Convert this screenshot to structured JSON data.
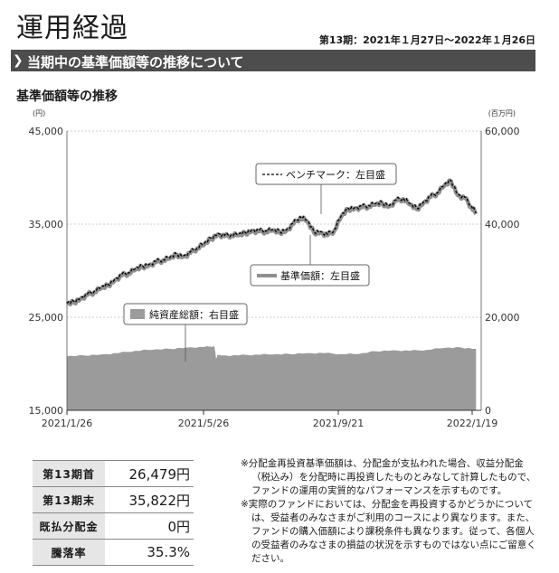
{
  "header": {
    "title": "運用経過",
    "period": "第13期：2021年１月27日～2022年１月26日",
    "section_title": "当期中の基準価額等の推移について",
    "chart_subtitle": "基準価額等の推移"
  },
  "chart_data": {
    "type": "line",
    "left_unit": "(円)",
    "right_unit": "(百万円)",
    "left_axis": {
      "ticks": [
        "45,000",
        "35,000",
        "25,000",
        "15,000"
      ],
      "ylim": [
        15000,
        45000
      ]
    },
    "right_axis": {
      "ticks": [
        "60,000",
        "40,000",
        "20,000",
        "0"
      ],
      "ylim": [
        0,
        60000
      ]
    },
    "x_ticks": [
      "2021/1/26",
      "2021/5/26",
      "2021/9/21",
      "2022/1/19"
    ],
    "legend": {
      "benchmark": "ベンチマーク：左目盛",
      "nav": "基準価額：左目盛",
      "assets": "純資産総額：右目盛"
    },
    "series": [
      {
        "name": "基準価額：左目盛",
        "axis": "left",
        "color": "#8f8f8f",
        "x_months": [
          0,
          0.2,
          0.4,
          0.6,
          0.8,
          1.0,
          1.2,
          1.4,
          1.6,
          1.8,
          2.0,
          2.2,
          2.4,
          2.6,
          2.8,
          3.0,
          3.2,
          3.4,
          3.6,
          3.8,
          4.0,
          4.2,
          4.4,
          4.6,
          4.8,
          5.0,
          5.2,
          5.4,
          5.6,
          5.8,
          6.0,
          6.2,
          6.4,
          6.6,
          6.8,
          7.0,
          7.2,
          7.4,
          7.6,
          7.8,
          8.0,
          8.2,
          8.4,
          8.6,
          8.8,
          9.0,
          9.2,
          9.4,
          9.6,
          9.8,
          10.0,
          10.2,
          10.4,
          10.6,
          10.8,
          11.0,
          11.2,
          11.4,
          11.6,
          11.8,
          11.93
        ],
        "values": [
          26400,
          26600,
          27000,
          27400,
          27700,
          28100,
          28400,
          29000,
          29500,
          29700,
          30100,
          30400,
          30600,
          30900,
          31100,
          31300,
          31700,
          31500,
          31900,
          32400,
          32800,
          33400,
          33900,
          33700,
          33800,
          33800,
          34000,
          34300,
          34200,
          34200,
          34300,
          34100,
          34300,
          35000,
          35700,
          35300,
          34100,
          34100,
          33800,
          34300,
          35800,
          36600,
          36700,
          36800,
          36900,
          37100,
          37200,
          36900,
          37500,
          37700,
          37100,
          36600,
          37300,
          37900,
          38300,
          39100,
          39600,
          38100,
          37800,
          36800,
          36100
        ]
      },
      {
        "name": "ベンチマーク：左目盛",
        "axis": "left",
        "color": "#000000",
        "x_months": [
          0,
          0.2,
          0.4,
          0.6,
          0.8,
          1.0,
          1.2,
          1.4,
          1.6,
          1.8,
          2.0,
          2.2,
          2.4,
          2.6,
          2.8,
          3.0,
          3.2,
          3.4,
          3.6,
          3.8,
          4.0,
          4.2,
          4.4,
          4.6,
          4.8,
          5.0,
          5.2,
          5.4,
          5.6,
          5.8,
          6.0,
          6.2,
          6.4,
          6.6,
          6.8,
          7.0,
          7.2,
          7.4,
          7.6,
          7.8,
          8.0,
          8.2,
          8.4,
          8.6,
          8.8,
          9.0,
          9.2,
          9.4,
          9.6,
          9.8,
          10.0,
          10.2,
          10.4,
          10.6,
          10.8,
          11.0,
          11.2,
          11.4,
          11.6,
          11.8,
          11.93
        ],
        "values": [
          26500,
          26700,
          27100,
          27500,
          27800,
          28200,
          28500,
          29100,
          29600,
          29800,
          30200,
          30500,
          30700,
          31000,
          31200,
          31400,
          31800,
          31600,
          32000,
          32500,
          32900,
          33500,
          34000,
          33800,
          33900,
          33900,
          34100,
          34400,
          34300,
          34300,
          34400,
          34200,
          34400,
          35100,
          35800,
          35400,
          34200,
          34200,
          33900,
          34400,
          35900,
          36700,
          36800,
          36900,
          37000,
          37200,
          37300,
          37000,
          37600,
          37800,
          37200,
          36700,
          37400,
          38000,
          38400,
          39200,
          39700,
          38200,
          37900,
          36900,
          36200
        ]
      },
      {
        "name": "純資産総額：右目盛",
        "axis": "right",
        "color": "#9b9b9b",
        "x_months": [
          0,
          0.5,
          1.0,
          1.5,
          2.0,
          2.5,
          3.0,
          3.5,
          4.0,
          4.3,
          4.35,
          4.4,
          4.5,
          5.0,
          5.5,
          6.0,
          6.5,
          7.0,
          7.5,
          8.0,
          8.5,
          9.0,
          9.5,
          10.0,
          10.5,
          11.0,
          11.5,
          11.93
        ],
        "values": [
          11600,
          11800,
          12000,
          12300,
          12800,
          13000,
          13200,
          13500,
          13600,
          13800,
          11000,
          12000,
          11800,
          11800,
          12000,
          12000,
          12100,
          12300,
          12300,
          12100,
          12100,
          12700,
          12900,
          12800,
          13000,
          13400,
          13500,
          13200
        ]
      }
    ]
  },
  "stats": [
    {
      "label": "第13期首",
      "value": "26,479円"
    },
    {
      "label": "第13期末",
      "value": "35,822円"
    },
    {
      "label": "既払分配金",
      "value": "0円"
    },
    {
      "label": "騰落率",
      "value": "35.3%"
    }
  ],
  "notes": [
    "※分配金再投資基準価額は、分配金が支払われた場合、収益分配金（税込み）を分配時に再投資したものとみなして計算したもので、ファンドの運用の実質的なパフォーマンスを示すものです。",
    "※実際のファンドにおいては、分配金を再投資するかどうかについては、受益者のみなさまがご利用のコースにより異なります。また、ファンドの購入価額により課税条件も異なります。従って、各個人の受益者のみなさまの損益の状況を示すものではない点にご留意ください。"
  ]
}
